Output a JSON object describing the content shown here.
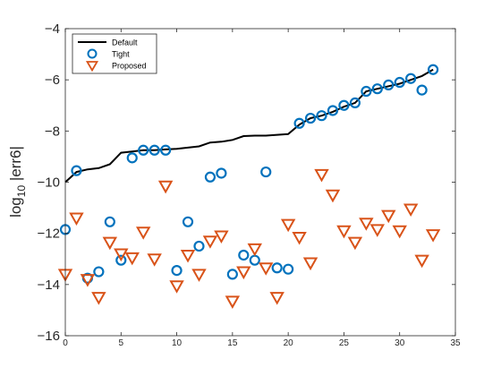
{
  "chart_data": {
    "type": "scatter",
    "xlabel": "",
    "ylabel_parts": [
      "log",
      "10",
      " |err6|"
    ],
    "xlim": [
      0,
      35
    ],
    "ylim": [
      -16,
      -4
    ],
    "xticks": [
      0,
      5,
      10,
      15,
      20,
      25,
      30,
      35
    ],
    "yticks": [
      -16,
      -14,
      -12,
      -10,
      -8,
      -6,
      -4
    ],
    "xtick_labels": [
      "0",
      "5",
      "10",
      "15",
      "20",
      "25",
      "30",
      "35"
    ],
    "ytick_labels": [
      "−16",
      "−14",
      "−12",
      "−10",
      "−8",
      "−6",
      "−4"
    ],
    "grid": false,
    "legend_position": "top-left",
    "series": [
      {
        "name": "Default",
        "style": "line",
        "color": "#000000",
        "x": [
          0,
          1,
          2,
          3,
          4,
          5,
          6,
          7,
          8,
          9,
          10,
          11,
          12,
          13,
          14,
          15,
          16,
          17,
          18,
          19,
          20,
          21,
          22,
          23,
          24,
          25,
          26,
          27,
          28,
          29,
          30,
          31,
          32,
          33
        ],
        "y": [
          -10.0,
          -9.6,
          -9.5,
          -9.45,
          -9.3,
          -8.85,
          -8.8,
          -8.75,
          -8.75,
          -8.72,
          -8.7,
          -8.65,
          -8.6,
          -8.45,
          -8.42,
          -8.35,
          -8.2,
          -8.18,
          -8.18,
          -8.15,
          -8.12,
          -7.75,
          -7.5,
          -7.4,
          -7.25,
          -7.05,
          -6.9,
          -6.45,
          -6.35,
          -6.25,
          -6.15,
          -6.0,
          -5.85,
          -5.6
        ]
      },
      {
        "name": "Tight",
        "style": "circle",
        "color": "#0072BD",
        "x": [
          0,
          1,
          2,
          3,
          4,
          5,
          6,
          7,
          8,
          9,
          10,
          11,
          12,
          13,
          14,
          15,
          16,
          17,
          18,
          19,
          20,
          21,
          22,
          23,
          24,
          25,
          26,
          27,
          28,
          29,
          30,
          31,
          32,
          33
        ],
        "y": [
          -11.85,
          -9.55,
          -13.75,
          -13.5,
          -11.55,
          -13.05,
          -9.05,
          -8.75,
          -8.75,
          -8.75,
          -13.45,
          -11.55,
          -12.5,
          -9.8,
          -9.65,
          -13.6,
          -12.85,
          -13.05,
          -9.6,
          -13.35,
          -13.4,
          -7.7,
          -7.5,
          -7.4,
          -7.2,
          -7.0,
          -6.9,
          -6.45,
          -6.35,
          -6.2,
          -6.1,
          -5.95,
          -6.4,
          -5.6
        ]
      },
      {
        "name": "Proposed",
        "style": "triangle",
        "color": "#D95319",
        "x": [
          0,
          1,
          2,
          3,
          4,
          5,
          6,
          7,
          8,
          9,
          10,
          11,
          12,
          13,
          14,
          15,
          16,
          17,
          18,
          19,
          20,
          21,
          22,
          23,
          24,
          25,
          26,
          27,
          28,
          29,
          30,
          31,
          32,
          33
        ],
        "y": [
          -13.6,
          -11.4,
          -13.8,
          -14.5,
          -12.35,
          -12.8,
          -12.95,
          -11.95,
          -13.0,
          -10.15,
          -14.05,
          -12.85,
          -13.6,
          -12.3,
          -12.1,
          -14.65,
          -13.5,
          -12.6,
          -13.35,
          -14.5,
          -11.65,
          -12.15,
          -13.15,
          -9.7,
          -10.5,
          -11.9,
          -12.35,
          -11.6,
          -11.85,
          -11.3,
          -11.9,
          -11.05,
          -13.05,
          -12.05
        ]
      }
    ]
  }
}
